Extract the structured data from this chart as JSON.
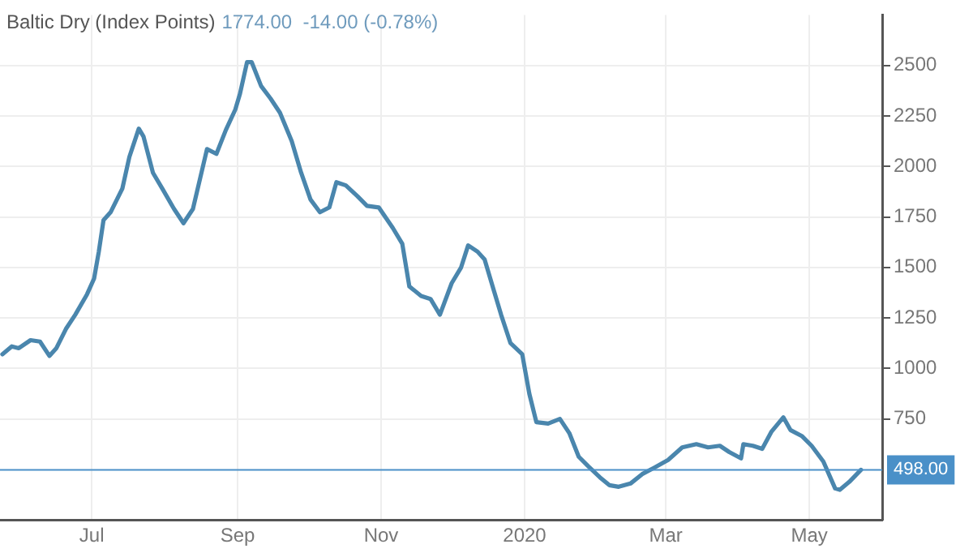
{
  "chart_data": {
    "type": "line",
    "title": "Baltic Dry (Index Points)",
    "subtitle": "1774.00  -14.00 (-0.78%)",
    "x": [
      "2019-05-24",
      "2019-05-28",
      "2019-05-31",
      "2019-06-05",
      "2019-06-09",
      "2019-06-13",
      "2019-06-16",
      "2019-06-20",
      "2019-06-24",
      "2019-06-29",
      "2019-07-02",
      "2019-07-04",
      "2019-07-06",
      "2019-07-09",
      "2019-07-14",
      "2019-07-17",
      "2019-07-21",
      "2019-07-23",
      "2019-07-27",
      "2019-07-31",
      "2019-08-05",
      "2019-08-09",
      "2019-08-13",
      "2019-08-19",
      "2019-08-23",
      "2019-08-27",
      "2019-08-31",
      "2019-09-02",
      "2019-09-05",
      "2019-09-07",
      "2019-09-11",
      "2019-09-15",
      "2019-09-19",
      "2019-09-24",
      "2019-09-28",
      "2019-10-02",
      "2019-10-06",
      "2019-10-10",
      "2019-10-13",
      "2019-10-17",
      "2019-10-22",
      "2019-10-26",
      "2019-10-31",
      "2019-11-06",
      "2019-11-10",
      "2019-11-13",
      "2019-11-18",
      "2019-11-22",
      "2019-11-26",
      "2019-12-01",
      "2019-12-05",
      "2019-12-08",
      "2019-12-12",
      "2019-12-15",
      "2019-12-19",
      "2019-12-22",
      "2019-12-26",
      "2019-12-31",
      "2020-01-03",
      "2020-01-06",
      "2020-01-11",
      "2020-01-16",
      "2020-01-20",
      "2020-01-24",
      "2020-01-28",
      "2020-02-02",
      "2020-02-06",
      "2020-02-10",
      "2020-02-15",
      "2020-02-20",
      "2020-02-25",
      "2020-03-02",
      "2020-03-08",
      "2020-03-14",
      "2020-03-19",
      "2020-03-24",
      "2020-03-28",
      "2020-04-02",
      "2020-04-03",
      "2020-04-07",
      "2020-04-11",
      "2020-04-15",
      "2020-04-20",
      "2020-04-23",
      "2020-04-28",
      "2020-05-02",
      "2020-05-07",
      "2020-05-12",
      "2020-05-14",
      "2020-05-18",
      "2020-05-23"
    ],
    "series": [
      {
        "color": "#4a86ad",
        "values": [
          1070,
          1109,
          1100,
          1140,
          1133,
          1062,
          1101,
          1195,
          1266,
          1367,
          1445,
          1578,
          1734,
          1773,
          1890,
          2047,
          2187,
          2148,
          1969,
          1890,
          1789,
          1719,
          1789,
          2086,
          2062,
          2180,
          2281,
          2359,
          2516,
          2516,
          2398,
          2336,
          2266,
          2125,
          1969,
          1836,
          1773,
          1797,
          1922,
          1906,
          1852,
          1805,
          1797,
          1695,
          1617,
          1406,
          1359,
          1344,
          1266,
          1422,
          1500,
          1609,
          1578,
          1539,
          1383,
          1266,
          1125,
          1070,
          875,
          734,
          727,
          750,
          680,
          563,
          516,
          461,
          422,
          414,
          430,
          477,
          508,
          547,
          609,
          625,
          609,
          617,
          586,
          555,
          625,
          617,
          602,
          688,
          758,
          695,
          664,
          617,
          539,
          406,
          399,
          438,
          498
        ]
      }
    ],
    "xlim": [
      "2019-05-23",
      "2020-06-01"
    ],
    "xticks": [
      {
        "value": "2019-07-01",
        "label": "Jul"
      },
      {
        "value": "2019-09-01",
        "label": "Sep"
      },
      {
        "value": "2019-11-01",
        "label": "Nov"
      },
      {
        "value": "2020-01-01",
        "label": "2020"
      },
      {
        "value": "2020-03-01",
        "label": "Mar"
      },
      {
        "value": "2020-05-01",
        "label": "May"
      }
    ],
    "ylim": [
      250,
      2750
    ],
    "yticks": [
      750,
      1000,
      1250,
      1500,
      1750,
      2000,
      2250,
      2500
    ],
    "ref_lines": [
      {
        "axis": "y",
        "value": 498,
        "label": "498.00",
        "color": "#4a90c8"
      }
    ],
    "grid": true,
    "legend": false,
    "marker": "none",
    "line_style": "solid"
  }
}
